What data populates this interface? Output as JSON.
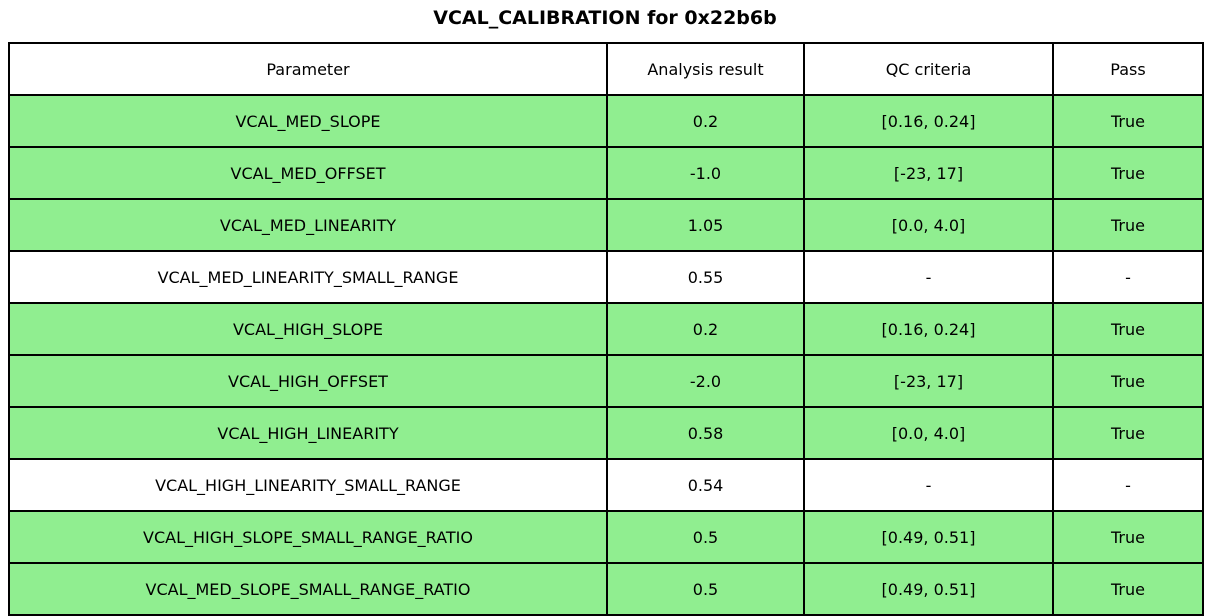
{
  "title": "VCAL_CALIBRATION for 0x22b6b",
  "colors": {
    "pass_row_bg": "#90ee90",
    "plain_row_bg": "#ffffff",
    "border": "#000000",
    "text": "#000000"
  },
  "chart_data": {
    "type": "table",
    "title": "VCAL_CALIBRATION for 0x22b6b",
    "columns": [
      "Parameter",
      "Analysis result",
      "QC criteria",
      "Pass"
    ],
    "rows": [
      {
        "parameter": "VCAL_MED_SLOPE",
        "analysis_result": "0.2",
        "qc_criteria": "[0.16, 0.24]",
        "pass": "True",
        "highlighted": true
      },
      {
        "parameter": "VCAL_MED_OFFSET",
        "analysis_result": "-1.0",
        "qc_criteria": "[-23, 17]",
        "pass": "True",
        "highlighted": true
      },
      {
        "parameter": "VCAL_MED_LINEARITY",
        "analysis_result": "1.05",
        "qc_criteria": "[0.0, 4.0]",
        "pass": "True",
        "highlighted": true
      },
      {
        "parameter": "VCAL_MED_LINEARITY_SMALL_RANGE",
        "analysis_result": "0.55",
        "qc_criteria": "-",
        "pass": "-",
        "highlighted": false
      },
      {
        "parameter": "VCAL_HIGH_SLOPE",
        "analysis_result": "0.2",
        "qc_criteria": "[0.16, 0.24]",
        "pass": "True",
        "highlighted": true
      },
      {
        "parameter": "VCAL_HIGH_OFFSET",
        "analysis_result": "-2.0",
        "qc_criteria": "[-23, 17]",
        "pass": "True",
        "highlighted": true
      },
      {
        "parameter": "VCAL_HIGH_LINEARITY",
        "analysis_result": "0.58",
        "qc_criteria": "[0.0, 4.0]",
        "pass": "True",
        "highlighted": true
      },
      {
        "parameter": "VCAL_HIGH_LINEARITY_SMALL_RANGE",
        "analysis_result": "0.54",
        "qc_criteria": "-",
        "pass": "-",
        "highlighted": false
      },
      {
        "parameter": "VCAL_HIGH_SLOPE_SMALL_RANGE_RATIO",
        "analysis_result": "0.5",
        "qc_criteria": "[0.49, 0.51]",
        "pass": "True",
        "highlighted": true
      },
      {
        "parameter": "VCAL_MED_SLOPE_SMALL_RANGE_RATIO",
        "analysis_result": "0.5",
        "qc_criteria": "[0.49, 0.51]",
        "pass": "True",
        "highlighted": true
      }
    ]
  }
}
